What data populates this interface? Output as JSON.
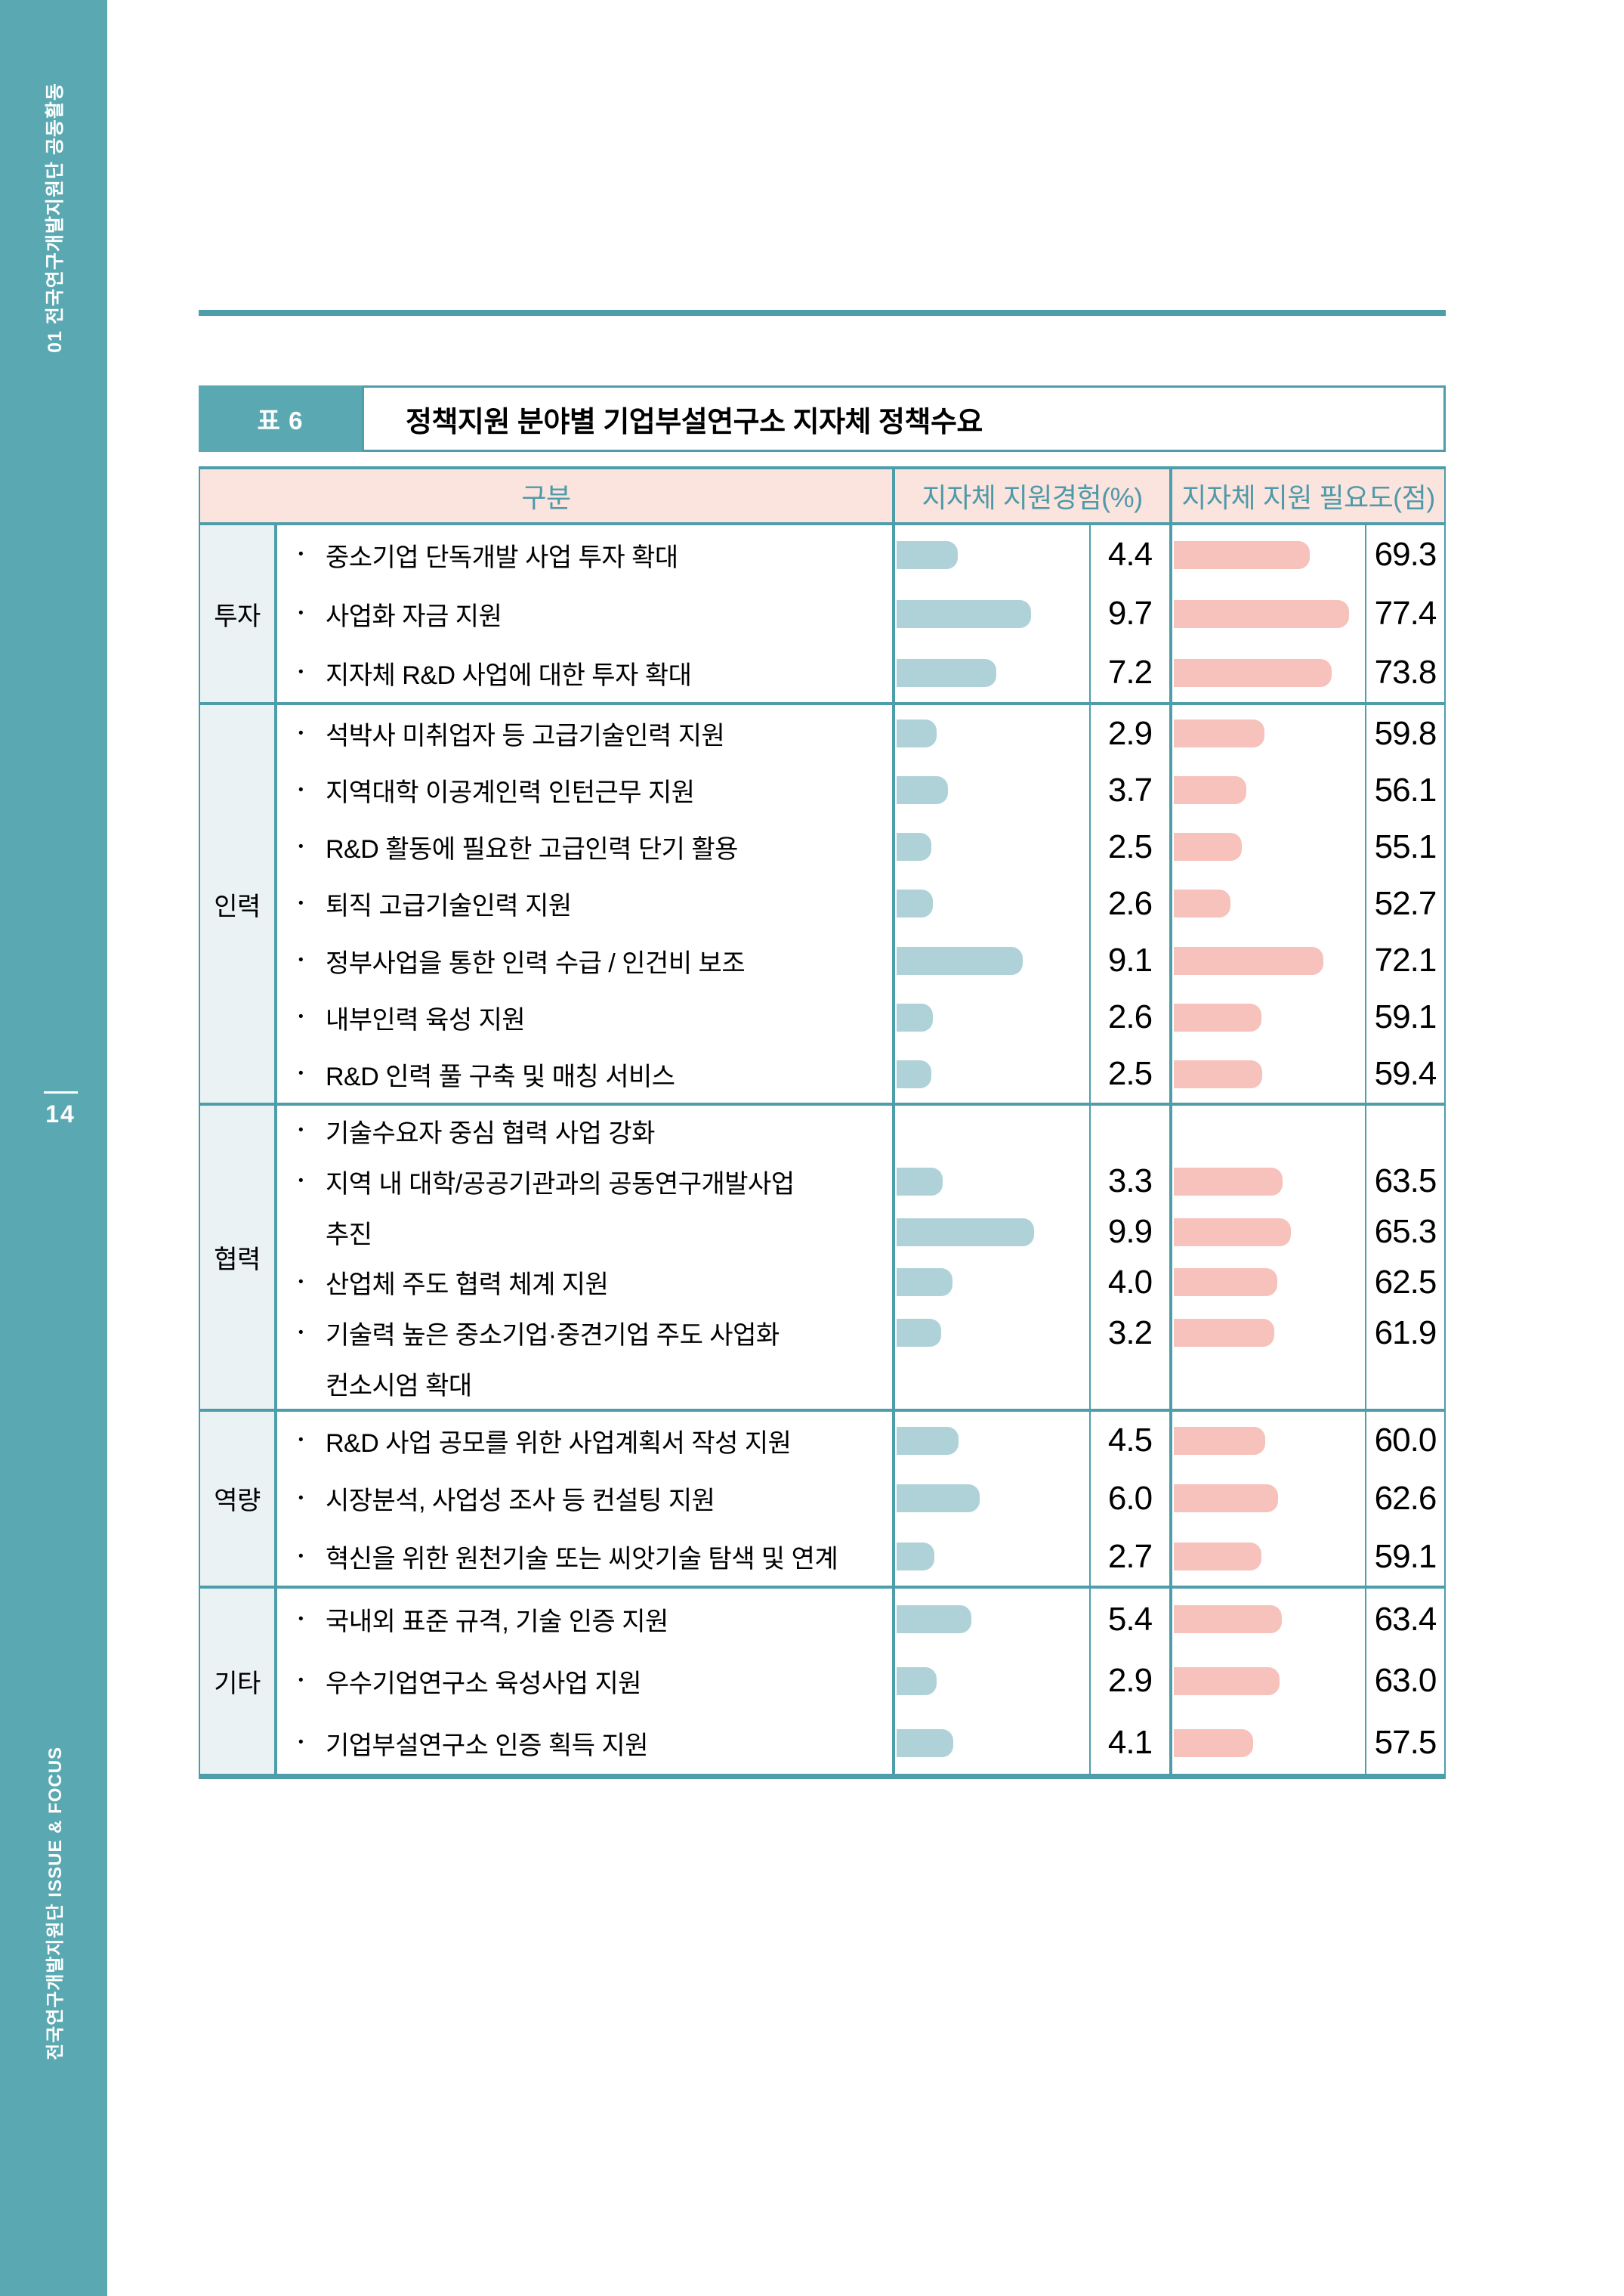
{
  "sidebar": {
    "top_vertical_text": "01 전국연구개발지원단 공동활동",
    "page_number": "14",
    "bottom_vertical_text": "전국연구개발지원단 ISSUE & FOCUS"
  },
  "caption": {
    "tag": "표 6",
    "title": "정책지원 분야별 기업부설연구소 지자체 정책수요"
  },
  "table": {
    "headers": {
      "category": "구분",
      "experience": "지자체 지원경험(%)",
      "need": "지자체 지원 필요도(점)"
    },
    "sections": [
      {
        "label": "투자",
        "rows": [
          {
            "text": "중소기업 단독개발 사업 투자 확대",
            "exp": "4.4",
            "need": "69.3"
          },
          {
            "text": "사업화 자금 지원",
            "exp": "9.7",
            "need": "77.4"
          },
          {
            "text": "지자체 R&D 사업에 대한 투자 확대",
            "exp": "7.2",
            "need": "73.8"
          }
        ]
      },
      {
        "label": "인력",
        "rows": [
          {
            "text": "석박사 미취업자 등 고급기술인력 지원",
            "exp": "2.9",
            "need": "59.8"
          },
          {
            "text": "지역대학 이공계인력 인턴근무 지원",
            "exp": "3.7",
            "need": "56.1"
          },
          {
            "text": "R&D 활동에 필요한 고급인력 단기 활용",
            "exp": "2.5",
            "need": "55.1"
          },
          {
            "text": "퇴직 고급기술인력 지원",
            "exp": "2.6",
            "need": "52.7"
          },
          {
            "text": "정부사업을 통한 인력 수급 / 인건비 보조",
            "exp": "9.1",
            "need": "72.1"
          },
          {
            "text": "내부인력 육성 지원",
            "exp": "2.6",
            "need": "59.1"
          },
          {
            "text": "R&D 인력 풀 구축 및 매칭 서비스",
            "exp": "2.5",
            "need": "59.4"
          }
        ]
      },
      {
        "label": "협력",
        "rows": [
          {
            "text": "기술수요자 중심 협력 사업 강화"
          },
          {
            "text": "지역 내 대학/공공기관과의 공동연구개발사업",
            "exp": "3.3",
            "need": "63.5"
          },
          {
            "text": "추진",
            "cont": true,
            "exp": "9.9",
            "need": "65.3"
          },
          {
            "text": "산업체 주도 협력 체계 지원",
            "exp": "4.0",
            "need": "62.5"
          },
          {
            "text": "기술력 높은 중소기업·중견기업 주도 사업화",
            "exp": "3.2",
            "need": "61.9"
          },
          {
            "text": "컨소시엄 확대",
            "cont": true
          }
        ]
      },
      {
        "label": "역량",
        "rows": [
          {
            "text": "R&D 사업 공모를 위한 사업계획서 작성 지원",
            "exp": "4.5",
            "need": "60.0"
          },
          {
            "text": "시장분석, 사업성 조사 등 컨설팅 지원",
            "exp": "6.0",
            "need": "62.6"
          },
          {
            "text": "혁신을 위한 원천기술 또는 씨앗기술 탐색 및 연계",
            "exp": "2.7",
            "need": "59.1"
          }
        ]
      },
      {
        "label": "기타",
        "rows": [
          {
            "text": "국내외 표준 규격, 기술 인증 지원",
            "exp": "5.4",
            "need": "63.4"
          },
          {
            "text": "우수기업연구소 육성사업 지원",
            "exp": "2.9",
            "need": "63.0"
          },
          {
            "text": "기업부설연구소 인증 획득 지원",
            "exp": "4.1",
            "need": "57.5"
          }
        ]
      }
    ]
  },
  "chart_data": {
    "type": "bar",
    "title": "정책지원 분야별 기업부설연구소 지자체 정책수요",
    "series_names": [
      "지자체 지원경험(%)",
      "지자체 지원 필요도(점)"
    ],
    "experience_axis": {
      "min": 0,
      "max": 14
    },
    "need_axis": {
      "min": 41,
      "max": 81
    },
    "groups": [
      {
        "group": "투자",
        "items": [
          {
            "label": "중소기업 단독개발 사업 투자 확대",
            "experience_pct": 4.4,
            "need_score": 69.3
          },
          {
            "label": "사업화 자금 지원",
            "experience_pct": 9.7,
            "need_score": 77.4
          },
          {
            "label": "지자체 R&D 사업에 대한 투자 확대",
            "experience_pct": 7.2,
            "need_score": 73.8
          }
        ]
      },
      {
        "group": "인력",
        "items": [
          {
            "label": "석박사 미취업자 등 고급기술인력 지원",
            "experience_pct": 2.9,
            "need_score": 59.8
          },
          {
            "label": "지역대학 이공계인력 인턴근무 지원",
            "experience_pct": 3.7,
            "need_score": 56.1
          },
          {
            "label": "R&D 활동에 필요한 고급인력 단기 활용",
            "experience_pct": 2.5,
            "need_score": 55.1
          },
          {
            "label": "퇴직 고급기술인력 지원",
            "experience_pct": 2.6,
            "need_score": 52.7
          },
          {
            "label": "정부사업을 통한 인력 수급 / 인건비 보조",
            "experience_pct": 9.1,
            "need_score": 72.1
          },
          {
            "label": "내부인력 육성 지원",
            "experience_pct": 2.6,
            "need_score": 59.1
          },
          {
            "label": "R&D 인력 풀 구축 및 매칭 서비스",
            "experience_pct": 2.5,
            "need_score": 59.4
          }
        ]
      },
      {
        "group": "협력",
        "items": [
          {
            "label": "기술수요자 중심 협력 사업 강화",
            "experience_pct": 3.3,
            "need_score": 63.5
          },
          {
            "label": "지역 내 대학/공공기관과의 공동연구개발사업 추진",
            "experience_pct": 9.9,
            "need_score": 65.3
          },
          {
            "label": "산업체 주도 협력 체계 지원",
            "experience_pct": 4.0,
            "need_score": 62.5
          },
          {
            "label": "기술력 높은 중소기업·중견기업 주도 사업화 컨소시엄 확대",
            "experience_pct": 3.2,
            "need_score": 61.9
          }
        ]
      },
      {
        "group": "역량",
        "items": [
          {
            "label": "R&D 사업 공모를 위한 사업계획서 작성 지원",
            "experience_pct": 4.5,
            "need_score": 60.0
          },
          {
            "label": "시장분석, 사업성 조사 등 컨설팅 지원",
            "experience_pct": 6.0,
            "need_score": 62.6
          },
          {
            "label": "혁신을 위한 원천기술 또는 씨앗기술 탐색 및 연계",
            "experience_pct": 2.7,
            "need_score": 59.1
          }
        ]
      },
      {
        "group": "기타",
        "items": [
          {
            "label": "국내외 표준 규격, 기술 인증 지원",
            "experience_pct": 5.4,
            "need_score": 63.4
          },
          {
            "label": "우수기업연구소 육성사업 지원",
            "experience_pct": 2.9,
            "need_score": 63.0
          },
          {
            "label": "기업부설연구소 인증 획득 지원",
            "experience_pct": 4.1,
            "need_score": 57.5
          }
        ]
      }
    ]
  },
  "colors": {
    "teal": "#5AA9B2",
    "teal_border": "#4D9DAB",
    "teal_text": "#4E9AA8",
    "pink_bg": "#FBE3DE",
    "bar_blue": "#AFD2D9",
    "bar_pink": "#F6C2BB",
    "cat_bg": "#EBF2F4"
  }
}
